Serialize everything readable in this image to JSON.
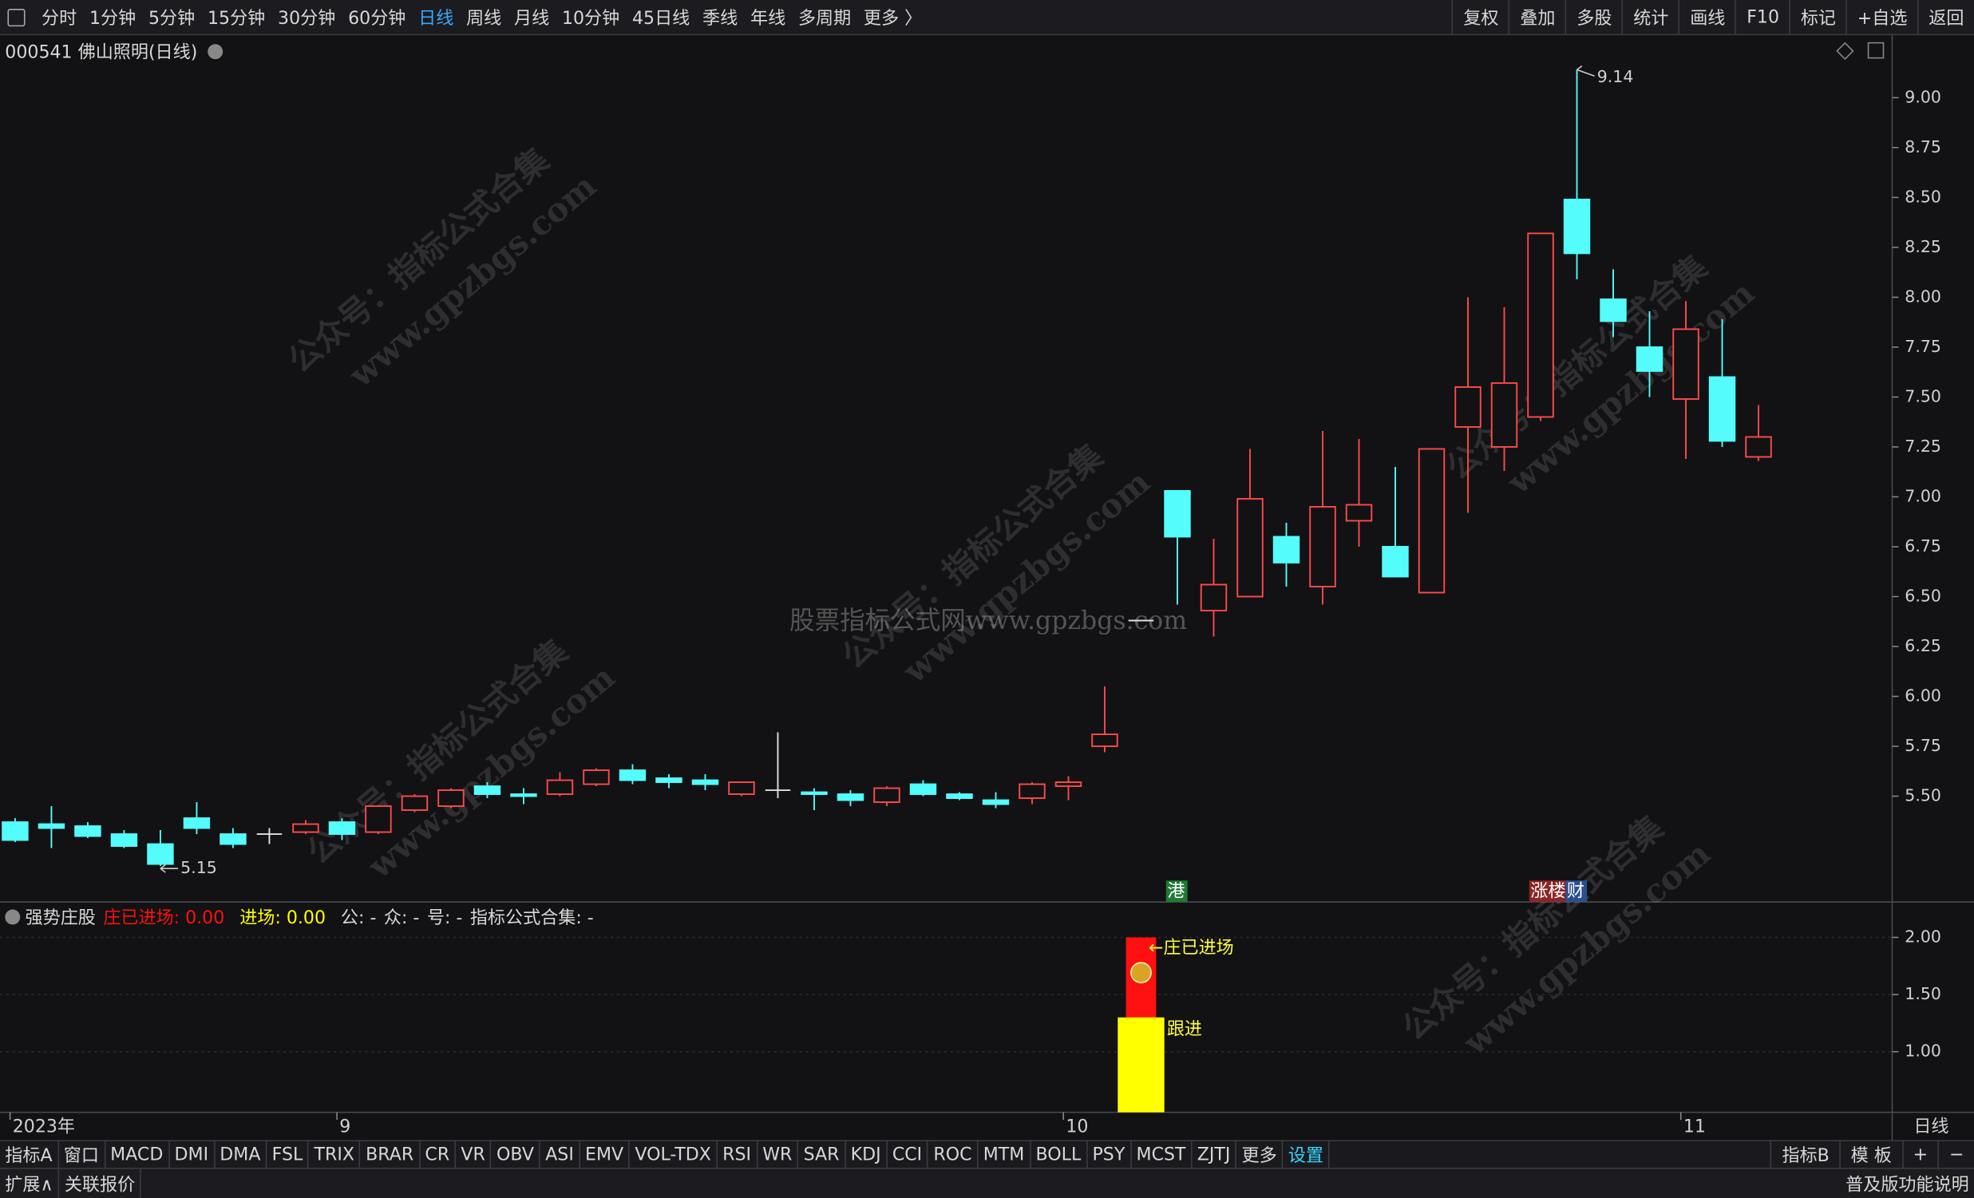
{
  "toolbar": {
    "periods": [
      "分时",
      "1分钟",
      "5分钟",
      "15分钟",
      "30分钟",
      "60分钟",
      "日线",
      "周线",
      "月线",
      "10分钟",
      "45日线",
      "季线",
      "年线",
      "多周期",
      "更多 〉"
    ],
    "actions": [
      "复权",
      "叠加",
      "多股",
      "统计",
      "画线",
      "F10",
      "标记",
      "+自选",
      "返回"
    ]
  },
  "indicator_tabs": {
    "left": [
      "指标A",
      "窗口",
      "MACD",
      "DMI",
      "DMA",
      "FSL",
      "TRIX",
      "BRAR",
      "CR",
      "VR",
      "OBV",
      "ASI",
      "EMV",
      "VOL-TDX",
      "RSI",
      "WR",
      "SAR",
      "KDJ",
      "CCI",
      "ROC",
      "MTM",
      "BOLL",
      "PSY",
      "MCST",
      "ZJTJ",
      "更多",
      "设置"
    ],
    "right": [
      "指标B",
      "模 板",
      "+",
      "−"
    ]
  },
  "status_bar": {
    "left": [
      "扩展∧",
      "关联报价"
    ],
    "right": "普及版功能说明"
  },
  "x_axis_period": "日线",
  "watermarks": {
    "account": "公众号：指标公式合集",
    "site": "www.gpzbgs.com",
    "center": "股票指标公式网www.gpzbgs.com"
  },
  "chart_data": [
    {
      "type": "candlestick",
      "title": "000541 佛山照明(日线)",
      "categories": [
        "2023年",
        null,
        null,
        null,
        null,
        null,
        null,
        null,
        null,
        "9",
        null,
        null,
        null,
        null,
        null,
        null,
        null,
        null,
        null,
        null,
        null,
        null,
        null,
        null,
        null,
        null,
        null,
        null,
        null,
        "10",
        null,
        null,
        null,
        null,
        null,
        null,
        null,
        null,
        null,
        null,
        null,
        null,
        null,
        null,
        null,
        null,
        "11",
        null,
        null
      ],
      "open": [
        5.37,
        5.36,
        5.35,
        5.31,
        5.26,
        5.39,
        5.31,
        5.31,
        5.32,
        5.37,
        5.32,
        5.43,
        5.45,
        5.55,
        5.51,
        5.51,
        5.56,
        5.63,
        5.59,
        5.58,
        5.51,
        5.53,
        5.52,
        5.51,
        5.47,
        5.56,
        5.51,
        5.48,
        5.49,
        5.55,
        5.75,
        6.38,
        7.03,
        6.43,
        6.5,
        6.8,
        6.55,
        6.88,
        6.75,
        6.52,
        7.35,
        7.25,
        7.4,
        8.49,
        7.99,
        7.75,
        7.49,
        7.6,
        7.2
      ],
      "high": [
        5.39,
        5.45,
        5.37,
        5.33,
        5.33,
        5.47,
        5.34,
        5.34,
        5.38,
        5.39,
        5.45,
        5.51,
        5.54,
        5.57,
        5.54,
        5.62,
        5.64,
        5.66,
        5.61,
        5.61,
        5.57,
        5.82,
        5.54,
        5.53,
        5.55,
        5.58,
        5.52,
        5.52,
        5.57,
        5.6,
        6.05,
        6.38,
        7.03,
        6.79,
        7.24,
        6.87,
        7.33,
        7.29,
        7.15,
        7.24,
        8.0,
        7.95,
        8.32,
        9.14,
        8.14,
        7.93,
        7.98,
        7.89,
        7.46
      ],
      "low": [
        5.27,
        5.24,
        5.29,
        5.24,
        5.15,
        5.31,
        5.24,
        5.26,
        5.31,
        5.28,
        5.31,
        5.42,
        5.44,
        5.49,
        5.46,
        5.5,
        5.55,
        5.56,
        5.54,
        5.53,
        5.5,
        5.49,
        5.43,
        5.45,
        5.45,
        5.5,
        5.48,
        5.44,
        5.46,
        5.48,
        5.72,
        6.38,
        6.46,
        6.3,
        6.5,
        6.55,
        6.46,
        6.75,
        6.6,
        6.52,
        6.92,
        7.13,
        7.38,
        8.09,
        7.8,
        7.5,
        7.19,
        7.25,
        7.18
      ],
      "close": [
        5.28,
        5.34,
        5.3,
        5.25,
        5.16,
        5.34,
        5.26,
        5.31,
        5.36,
        5.31,
        5.45,
        5.5,
        5.53,
        5.51,
        5.5,
        5.58,
        5.63,
        5.58,
        5.57,
        5.56,
        5.57,
        5.53,
        5.51,
        5.48,
        5.54,
        5.51,
        5.49,
        5.46,
        5.56,
        5.57,
        5.81,
        6.38,
        6.8,
        6.56,
        6.99,
        6.67,
        6.95,
        6.96,
        6.6,
        7.24,
        7.55,
        7.57,
        8.32,
        8.22,
        7.88,
        7.63,
        7.84,
        7.28,
        7.3
      ],
      "up_color": "#ff4a4a",
      "down_color": "#54fcfc",
      "flat_color": "#e0e0e0",
      "high_label": "9.14",
      "low_label": "5.15",
      "badges": [
        null,
        null,
        null,
        null,
        null,
        null,
        null,
        null,
        null,
        null,
        null,
        null,
        null,
        null,
        null,
        null,
        null,
        null,
        null,
        null,
        null,
        null,
        null,
        null,
        null,
        null,
        null,
        null,
        null,
        null,
        null,
        null,
        {
          "text": "港",
          "color": "#1f7a35"
        },
        null,
        null,
        null,
        null,
        null,
        null,
        null,
        null,
        null,
        {
          "text": "涨楼",
          "color": "#8a2626"
        },
        {
          "text": "财",
          "color": "#2a4f8f"
        },
        null,
        null,
        null,
        null,
        null
      ],
      "ylim": [
        4.97,
        9.3
      ],
      "yticks": [
        {
          "value": 5.5,
          "label": "5.50"
        },
        {
          "value": 5.75,
          "label": "5.75"
        },
        {
          "value": 6,
          "label": "6.00"
        },
        {
          "value": 6.25,
          "label": "6.25"
        },
        {
          "value": 6.5,
          "label": "6.50"
        },
        {
          "value": 6.75,
          "label": "6.75"
        },
        {
          "value": 7,
          "label": "7.00"
        },
        {
          "value": 7.25,
          "label": "7.25"
        },
        {
          "value": 7.5,
          "label": "7.50"
        },
        {
          "value": 7.75,
          "label": "7.75"
        },
        {
          "value": 8,
          "label": "8.00"
        },
        {
          "value": 8.25,
          "label": "8.25"
        },
        {
          "value": 8.5,
          "label": "8.50"
        },
        {
          "value": 8.75,
          "label": "8.75"
        },
        {
          "value": 9,
          "label": "9.00"
        }
      ]
    },
    {
      "type": "bar",
      "title": "强势庄股",
      "series": [
        {
          "name": "庄已进场",
          "readout": ": 0.00",
          "color": "#ff1010",
          "values": [
            null,
            null,
            null,
            null,
            null,
            null,
            null,
            null,
            null,
            null,
            null,
            null,
            null,
            null,
            null,
            null,
            null,
            null,
            null,
            null,
            null,
            null,
            null,
            null,
            null,
            null,
            null,
            null,
            null,
            null,
            null,
            2,
            null,
            null,
            null,
            null,
            null,
            null,
            null,
            null,
            null,
            null,
            null,
            null,
            null,
            null,
            null,
            null,
            null
          ]
        },
        {
          "name": "进场",
          "readout": ": 0.00",
          "color": "#ffff00",
          "values": [
            null,
            null,
            null,
            null,
            null,
            null,
            null,
            null,
            null,
            null,
            null,
            null,
            null,
            null,
            null,
            null,
            null,
            null,
            null,
            null,
            null,
            null,
            null,
            null,
            null,
            null,
            null,
            null,
            null,
            null,
            null,
            1.3,
            null,
            null,
            null,
            null,
            null,
            null,
            null,
            null,
            null,
            null,
            null,
            null,
            null,
            null,
            null,
            null,
            null
          ]
        }
      ],
      "header_extras": [
        "公: -",
        "众: -",
        "号: -",
        "指标公式合集: -"
      ],
      "annotations": [
        "←庄已进场",
        "跟进"
      ],
      "ylim": [
        0.47,
        2.31
      ],
      "yticks": [
        {
          "value": 1,
          "label": "1.00"
        },
        {
          "value": 1.5,
          "label": "1.50"
        },
        {
          "value": 2,
          "label": "2.00"
        }
      ]
    }
  ]
}
